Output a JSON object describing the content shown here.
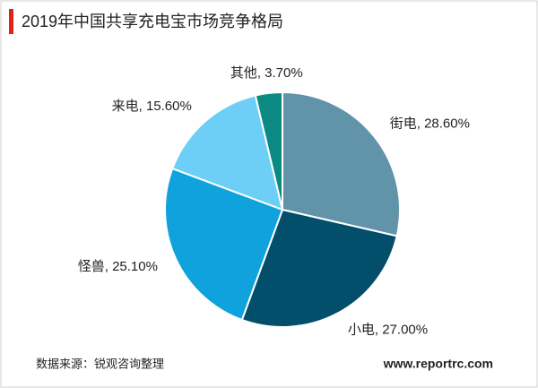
{
  "chart_data": {
    "type": "pie",
    "title": "2019年中国共享充电宝市场竞争格局",
    "categories": [
      "街电",
      "小电",
      "怪兽",
      "来电",
      "其他"
    ],
    "values": [
      28.6,
      27.0,
      25.1,
      15.6,
      3.7
    ],
    "value_labels": [
      "28.60%",
      "27.00%",
      "25.10%",
      "15.60%",
      "3.70%"
    ],
    "label_separator": ", ",
    "colors": [
      "#6193a9",
      "#024e6b",
      "#0fa2dc",
      "#6dcff5",
      "#0a8a82"
    ],
    "source": "数据来源：锐观咨询整理",
    "website": "www.reportrc.com"
  }
}
